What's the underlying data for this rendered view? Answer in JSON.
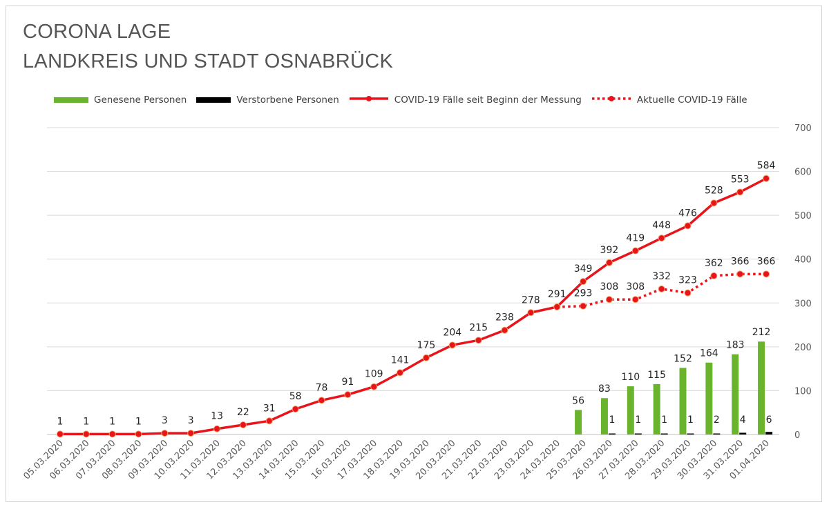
{
  "title": [
    "CORONA LAGE",
    "LANDKREIS UND STADT OSNABRÜCK"
  ],
  "legend": [
    {
      "label": "Genesene Personen",
      "kind": "bar",
      "color": "#6ab42d"
    },
    {
      "label": "Verstorbene Personen",
      "kind": "bar",
      "color": "#000000"
    },
    {
      "label": "COVID-19 Fälle seit Beginn der Messung",
      "kind": "line",
      "color": "#e8141b"
    },
    {
      "label": "Aktuelle COVID-19 Fälle",
      "kind": "dotted",
      "color": "#e8141b"
    }
  ],
  "chart_data": {
    "type": "line",
    "categories": [
      "05.03.2020",
      "06.03.2020",
      "07.03.2020",
      "08.03.2020",
      "09.03.2020",
      "10.03.2020",
      "11.03.2020",
      "12.03.2020",
      "13.03.2020",
      "14.03.2020",
      "15.03.2020",
      "16.03.2020",
      "17.03.2020",
      "18.03.2020",
      "19.03.2020",
      "20.03.2020",
      "21.03.2020",
      "22.03.2020",
      "23.03.2020",
      "24.03.2020",
      "25.03.2020",
      "26.03.2020",
      "27.03.2020",
      "28.03.2020",
      "29.03.2020",
      "30.03.2020",
      "31.03.2020",
      "01.04.2020"
    ],
    "series": [
      {
        "name": "Genesene Personen",
        "type": "bar",
        "color": "#6ab42d",
        "values": [
          null,
          null,
          null,
          null,
          null,
          null,
          null,
          null,
          null,
          null,
          null,
          null,
          null,
          null,
          null,
          null,
          null,
          null,
          null,
          null,
          56,
          83,
          110,
          115,
          152,
          164,
          183,
          212
        ]
      },
      {
        "name": "Verstorbene Personen",
        "type": "bar",
        "color": "#000000",
        "values": [
          null,
          null,
          null,
          null,
          null,
          null,
          null,
          null,
          null,
          null,
          null,
          null,
          null,
          null,
          null,
          null,
          null,
          null,
          null,
          null,
          null,
          1,
          1,
          1,
          1,
          2,
          4,
          6
        ]
      },
      {
        "name": "COVID-19 Fälle seit Beginn der Messung",
        "type": "line",
        "color": "#e8141b",
        "values": [
          1,
          1,
          1,
          1,
          3,
          3,
          13,
          22,
          31,
          58,
          78,
          91,
          109,
          141,
          175,
          204,
          215,
          238,
          278,
          291,
          349,
          392,
          419,
          448,
          476,
          528,
          553,
          584
        ]
      },
      {
        "name": "Aktuelle COVID-19 Fälle",
        "type": "dotted",
        "color": "#e8141b",
        "values": [
          null,
          null,
          null,
          null,
          null,
          null,
          null,
          null,
          null,
          null,
          null,
          null,
          null,
          null,
          null,
          null,
          null,
          null,
          null,
          291,
          293,
          308,
          308,
          332,
          323,
          362,
          366,
          366
        ]
      }
    ],
    "ylim": [
      0,
      700
    ],
    "yticks": [
      0,
      100,
      200,
      300,
      400,
      500,
      600,
      700
    ],
    "grid": true,
    "legend_position": "top"
  }
}
